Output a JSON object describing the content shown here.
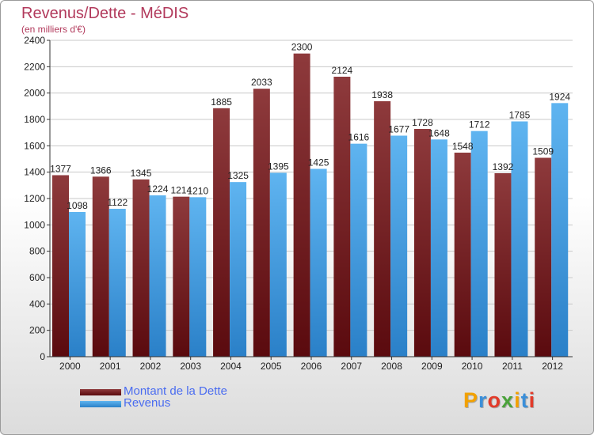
{
  "chart_data": {
    "type": "bar",
    "title": "Revenus/Dette - MéDIS",
    "subtitle": "(en milliers d'€)",
    "categories": [
      "2000",
      "2001",
      "2002",
      "2003",
      "2004",
      "2005",
      "2006",
      "2007",
      "2008",
      "2009",
      "2010",
      "2011",
      "2012"
    ],
    "series": [
      {
        "name": "Montant de la Dette",
        "color": "#7a1f22",
        "values": [
          1377,
          1366,
          1345,
          1214,
          1885,
          2033,
          2300,
          2124,
          1938,
          1728,
          1548,
          1392,
          1509
        ]
      },
      {
        "name": "Revenus",
        "color": "#3a9ae4",
        "values": [
          1098,
          1122,
          1224,
          1210,
          1325,
          1395,
          1425,
          1616,
          1677,
          1648,
          1712,
          1785,
          1924
        ]
      }
    ],
    "value_labels": [
      [
        "1377",
        "1366",
        "1345",
        "1214",
        "1885",
        "2033",
        "2300",
        "2124",
        "1938",
        "1728",
        "1548",
        "1392",
        "1509"
      ],
      [
        "1098",
        "1122",
        "1224",
        "1210",
        "1325",
        "1395",
        "1425",
        "1616",
        "1677",
        "1648",
        "1712",
        "1785",
        "1924"
      ]
    ],
    "yticks": [
      0,
      200,
      400,
      600,
      800,
      1000,
      1200,
      1400,
      1600,
      1800,
      2000,
      2200,
      2400
    ],
    "ylim": [
      0,
      2400
    ],
    "grid": true,
    "legend_position": "bottom-left"
  },
  "logo": {
    "letters": [
      "P",
      "r",
      "o",
      "x",
      "i",
      "t",
      "i"
    ],
    "colors": [
      "#f2a100",
      "#3b8fd9",
      "#e23b2a",
      "#4aa23a",
      "#f2a100",
      "#3b8fd9",
      "#e23b2a"
    ]
  }
}
